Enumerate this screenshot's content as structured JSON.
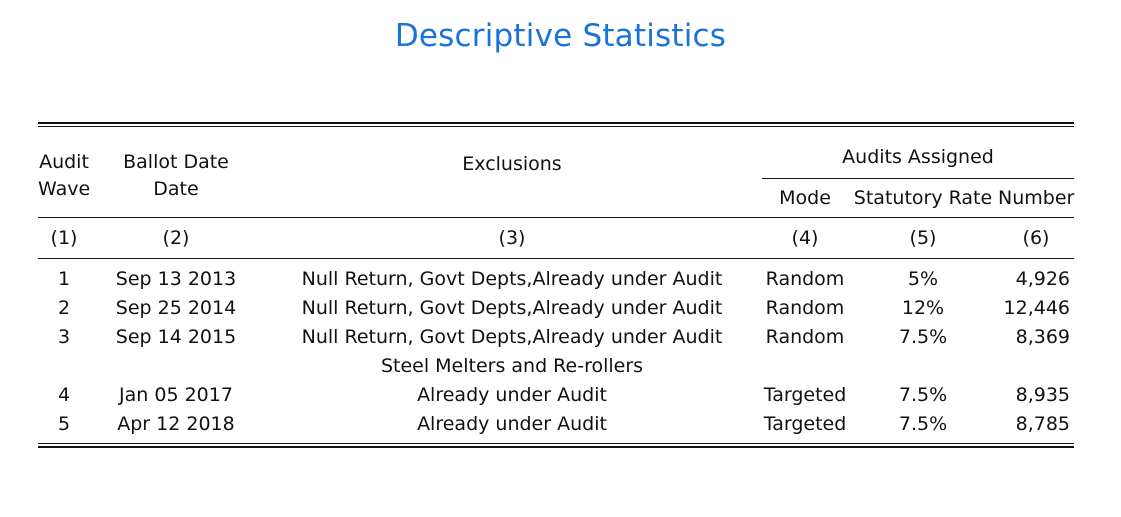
{
  "title": "Descriptive Statistics",
  "header": {
    "col1_line1": "Audit",
    "col1_line2": "Wave",
    "col2_line1": "Ballot Date",
    "col2_line2": "Date",
    "col3": "Exclusions",
    "group": "Audits Assigned",
    "col4": "Mode",
    "col5": "Statutory Rate",
    "col6": "Number"
  },
  "column_numbers": [
    "(1)",
    "(2)",
    "(3)",
    "(4)",
    "(5)",
    "(6)"
  ],
  "rows": [
    {
      "wave": "1",
      "date": "Sep 13 2013",
      "exclusions": "Null Return, Govt Depts,Already under Audit",
      "mode": "Random",
      "rate": "5%",
      "number": "4,926"
    },
    {
      "wave": "2",
      "date": "Sep 25 2014",
      "exclusions": "Null Return, Govt Depts,Already under Audit",
      "mode": "Random",
      "rate": "12%",
      "number": "12,446"
    },
    {
      "wave": "3",
      "date": "Sep 14 2015",
      "exclusions": "Null Return, Govt Depts,Already under Audit",
      "mode": "Random",
      "rate": "7.5%",
      "number": "8,369"
    },
    {
      "wave": "",
      "date": "",
      "exclusions": "Steel Melters and Re-rollers",
      "mode": "",
      "rate": "",
      "number": ""
    },
    {
      "wave": "4",
      "date": "Jan 05 2017",
      "exclusions": "Already under Audit",
      "mode": "Targeted",
      "rate": "7.5%",
      "number": "8,935"
    },
    {
      "wave": "5",
      "date": "Apr 12 2018",
      "exclusions": "Already under Audit",
      "mode": "Targeted",
      "rate": "7.5%",
      "number": "8,785"
    }
  ]
}
